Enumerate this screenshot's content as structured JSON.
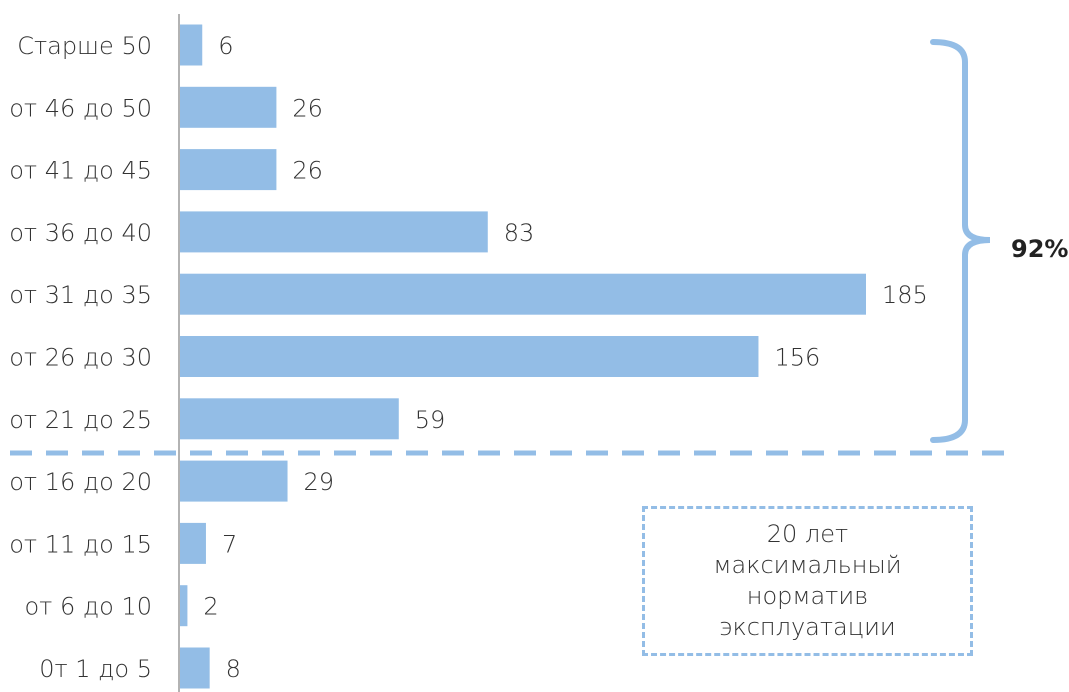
{
  "chart_data": {
    "type": "bar",
    "orientation": "horizontal",
    "categories": [
      "Старше 50",
      "от 46 до 50",
      "от 41 до 45",
      "от 36 до 40",
      "от 31 до 35",
      "от 26 до 30",
      "от 21 до 25",
      "от 16 до 20",
      "от 11 до 15",
      "от 6 до 10",
      "0т 1 до 5"
    ],
    "values": [
      6,
      26,
      26,
      83,
      185,
      156,
      59,
      29,
      7,
      2,
      8
    ],
    "xlim": [
      0,
      185
    ],
    "grid": false,
    "bar_color": "#93bde6",
    "annotations": {
      "bracket_label": "92%",
      "bracket_range": [
        "Старше 50",
        "от 21 до 25"
      ],
      "threshold_between": [
        "от 21 до 25",
        "от 16 до 20"
      ],
      "note": "20 лет\nмаксимальный\nнорматив\nэксплуатации"
    }
  }
}
